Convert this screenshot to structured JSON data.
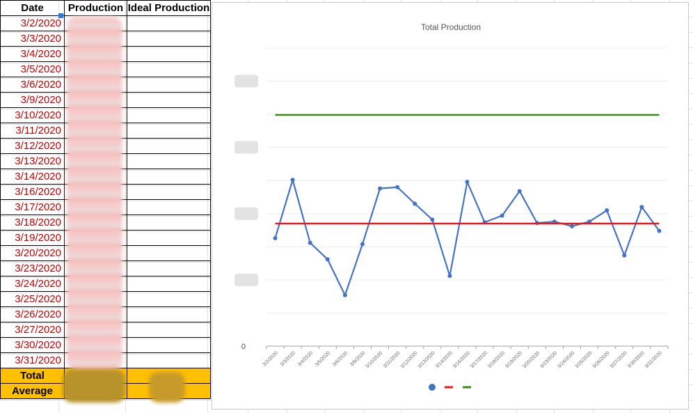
{
  "table": {
    "headers": [
      "Date",
      "Production",
      "Ideal Production"
    ],
    "dates": [
      "3/2/2020",
      "3/3/2020",
      "3/4/2020",
      "3/5/2020",
      "3/6/2020",
      "3/9/2020",
      "3/10/2020",
      "3/11/2020",
      "3/12/2020",
      "3/13/2020",
      "3/14/2020",
      "3/16/2020",
      "3/17/2020",
      "3/18/2020",
      "3/19/2020",
      "3/20/2020",
      "3/23/2020",
      "3/24/2020",
      "3/25/2020",
      "3/26/2020",
      "3/27/2020",
      "3/30/2020",
      "3/31/2020"
    ],
    "total_label": "Total",
    "average_label": "Average"
  },
  "chart_data": {
    "type": "line",
    "title": "Total Production",
    "xlabel": "",
    "ylabel": "",
    "categories": [
      "3/2/2020",
      "3/3/2020",
      "3/4/2020",
      "3/5/2020",
      "3/6/2020",
      "3/9/2020",
      "3/10/2020",
      "3/11/2020",
      "3/12/2020",
      "3/13/2020",
      "3/14/2020",
      "3/16/2020",
      "3/17/2020",
      "3/18/2020",
      "3/19/2020",
      "3/20/2020",
      "3/23/2020",
      "3/24/2020",
      "3/25/2020",
      "3/26/2020",
      "3/27/2020",
      "3/30/2020",
      "3/31/2020"
    ],
    "y_tick_labels_visible": [
      "0"
    ],
    "y_ticks_obscured": true,
    "grid": true,
    "legend_position": "bottom",
    "series": [
      {
        "color": "#4472c4",
        "marker": "circle",
        "values": [
          1.63,
          2.51,
          1.56,
          1.31,
          0.77,
          1.54,
          2.38,
          2.4,
          2.15,
          1.91,
          1.06,
          2.48,
          1.87,
          1.97,
          2.34,
          1.86,
          1.88,
          1.81,
          1.88,
          2.05,
          1.37,
          2.1,
          1.74
        ]
      },
      {
        "color": "#e8181c",
        "marker": "none",
        "values": [
          1.85,
          1.85,
          1.85,
          1.85,
          1.85,
          1.85,
          1.85,
          1.85,
          1.85,
          1.85,
          1.85,
          1.85,
          1.85,
          1.85,
          1.85,
          1.85,
          1.85,
          1.85,
          1.85,
          1.85,
          1.85,
          1.85,
          1.85
        ]
      },
      {
        "color": "#3a8a1a",
        "marker": "none",
        "values": [
          3.49,
          3.49,
          3.49,
          3.49,
          3.49,
          3.49,
          3.49,
          3.49,
          3.49,
          3.49,
          3.49,
          3.49,
          3.49,
          3.49,
          3.49,
          3.49,
          3.49,
          3.49,
          3.49,
          3.49,
          3.49,
          3.49,
          3.49
        ]
      }
    ],
    "ylim": [
      0,
      4.5
    ],
    "zero_label": "0"
  }
}
